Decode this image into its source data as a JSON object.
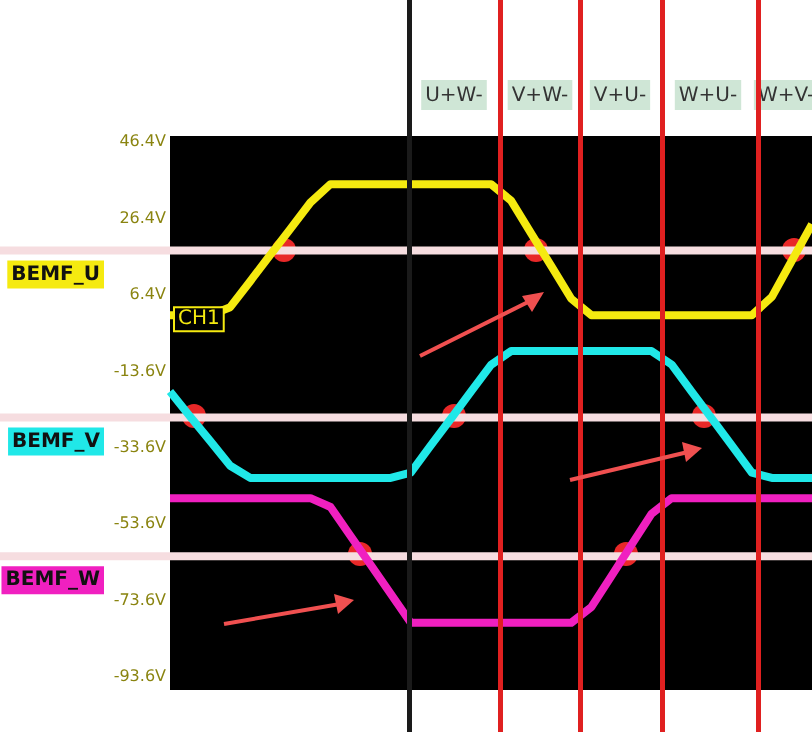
{
  "chart_data": {
    "type": "line",
    "tick_labels": "y",
    "line_style": "solid",
    "categories": [
      null,
      null,
      null,
      null,
      null,
      null,
      null,
      null,
      null,
      null,
      null,
      null,
      null,
      null,
      null,
      null,
      null,
      null,
      null,
      null,
      null,
      null,
      null,
      null,
      null,
      null,
      null,
      null,
      null,
      null,
      null,
      null,
      null
    ],
    "ylim": [
      -97,
      48
    ],
    "yticks": [
      {
        "value": 46.4,
        "label": "46.4V"
      },
      {
        "value": 26.4,
        "label": "26.4V"
      },
      {
        "value": 6.4,
        "label": "6.4V"
      },
      {
        "value": -13.6,
        "label": "-13.6V"
      },
      {
        "value": -33.6,
        "label": "-33.6V"
      },
      {
        "value": -53.6,
        "label": "-53.6V"
      },
      {
        "value": -73.6,
        "label": "-73.6V"
      },
      {
        "value": -93.6,
        "label": "-93.6V"
      }
    ],
    "series": [
      {
        "name": "BEMF_U",
        "color": "#f5ea10",
        "values": [
          1.1,
          1.1,
          1.1,
          3.2,
          10.0,
          16.9,
          23.7,
          30.6,
          35.4,
          35.4,
          35.4,
          35.4,
          35.4,
          35.4,
          35.4,
          35.4,
          35.4,
          31.1,
          22.5,
          14.0,
          5.4,
          1.1,
          1.1,
          1.1,
          1.1,
          1.1,
          1.1,
          1.1,
          1.1,
          1.1,
          5.9,
          15.4,
          24.9
        ]
      },
      {
        "name": "BEMF_V",
        "color": "#20e8e8",
        "values": [
          -18.9,
          -25.4,
          -31.8,
          -38.3,
          -41.5,
          -41.5,
          -41.5,
          -41.5,
          -41.5,
          -41.5,
          -41.5,
          -41.5,
          -40.1,
          -33.0,
          -26.0,
          -18.9,
          -11.9,
          -8.3,
          -8.3,
          -8.3,
          -8.3,
          -8.3,
          -8.3,
          -8.3,
          -8.3,
          -11.8,
          -18.9,
          -25.9,
          -33.0,
          -40.1,
          -41.5,
          -41.5,
          -41.5
        ]
      },
      {
        "name": "BEMF_W",
        "color": "#f020c0",
        "values": [
          -46.8,
          -46.8,
          -46.8,
          -46.8,
          -46.8,
          -46.8,
          -46.8,
          -46.8,
          -49.1,
          -56.7,
          -64.2,
          -71.8,
          -79.4,
          -79.4,
          -79.4,
          -79.4,
          -79.4,
          -79.4,
          -79.4,
          -79.4,
          -79.4,
          -75.3,
          -67.2,
          -59.0,
          -50.9,
          -46.8,
          -46.8,
          -46.8,
          -46.8,
          -46.8,
          -46.8,
          -46.8,
          -46.8
        ]
      }
    ],
    "ref_lines": [
      {
        "axis": "y",
        "value": 18,
        "color": "#f6dde0"
      },
      {
        "axis": "y",
        "value": -25.7,
        "color": "#f6dde0"
      },
      {
        "axis": "y",
        "value": -62,
        "color": "#f6dde0"
      }
    ],
    "annotations": [
      "U+W-",
      "V+W-",
      "V+U-",
      "W+U-",
      "W+V-",
      {
        "text": "CH1",
        "y": 1.1
      }
    ]
  }
}
